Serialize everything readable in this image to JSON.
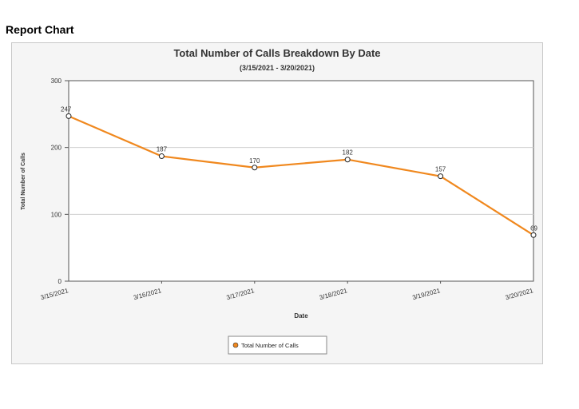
{
  "page": {
    "heading": "Report Chart"
  },
  "chart_data": {
    "type": "line",
    "title": "Total Number of Calls Breakdown By Date",
    "subtitle": "(3/15/2021 - 3/20/2021)",
    "xlabel": "Date",
    "ylabel": "Total Number of Calls",
    "categories": [
      "3/15/2021",
      "3/16/2021",
      "3/17/2021",
      "3/18/2021",
      "3/19/2021",
      "3/20/2021"
    ],
    "series": [
      {
        "name": "Total Number of Calls",
        "values": [
          247,
          187,
          170,
          182,
          157,
          69
        ],
        "color": "#f0881e"
      }
    ],
    "ylim": [
      0,
      300
    ],
    "yticks": [
      "0",
      "100",
      "200",
      "300"
    ],
    "grid": true,
    "legend": "bottom-center"
  }
}
